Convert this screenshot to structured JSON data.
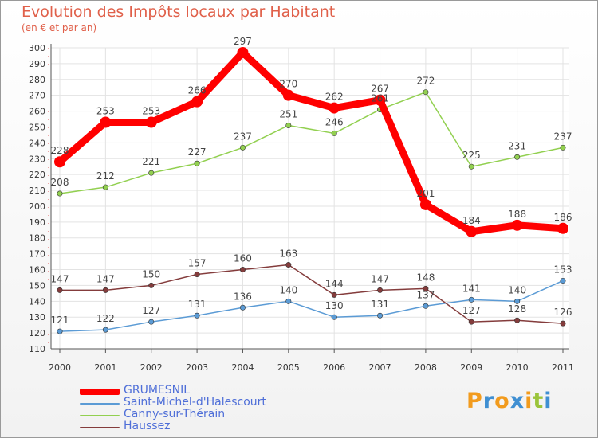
{
  "header": {
    "title": "Evolution des Impôts locaux par Habitant",
    "subtitle": "(en € et par an)"
  },
  "logo": {
    "text": "Proxiti",
    "colors": [
      "#f29b1d",
      "#3f8fd2",
      "#f29b1d",
      "#3f8fd2",
      "#f29b1d",
      "#9bc43b",
      "#3f8fd2"
    ]
  },
  "chart_data": {
    "type": "line",
    "title": "Evolution des Impôts locaux par Habitant",
    "subtitle": "(en € et par an)",
    "x": [
      "2000",
      "2001",
      "2002",
      "2003",
      "2004",
      "2005",
      "2006",
      "2007",
      "2008",
      "2009",
      "2010",
      "2011"
    ],
    "ylim": [
      110,
      300
    ],
    "yticks": [
      110,
      120,
      130,
      140,
      150,
      160,
      170,
      180,
      190,
      200,
      210,
      220,
      230,
      240,
      250,
      260,
      270,
      280,
      290,
      300
    ],
    "grid": true,
    "legend_position": "bottom-left",
    "series": [
      {
        "name": "GRUMESNIL",
        "color": "#ff0000",
        "values": [
          228,
          253,
          253,
          266,
          297,
          270,
          262,
          267,
          201,
          184,
          188,
          186
        ],
        "labels": [
          "228",
          "253",
          "253",
          "266",
          "297",
          "270",
          "262",
          "267",
          "201",
          "184",
          "188",
          "186"
        ]
      },
      {
        "name": "Saint-Michel-d'Halescourt",
        "color": "#5b9bd5",
        "values": [
          121,
          122,
          127,
          131,
          136,
          140,
          130,
          131,
          137,
          141,
          140,
          153
        ],
        "labels": [
          "121",
          "122",
          "127",
          "131",
          "136",
          "140",
          "130",
          "131",
          "137",
          "141",
          "140",
          "153"
        ]
      },
      {
        "name": "Canny-sur-Thérain",
        "color": "#92d050",
        "values": [
          208,
          212,
          221,
          227,
          237,
          251,
          246,
          261,
          272,
          225,
          231,
          237
        ],
        "labels": [
          "208",
          "212",
          "221",
          "227",
          "237",
          "251",
          "246",
          "261",
          "272",
          "225",
          "231",
          "237"
        ]
      },
      {
        "name": "Haussez",
        "color": "#843c3c",
        "values": [
          147,
          147,
          150,
          157,
          160,
          163,
          144,
          147,
          148,
          127,
          128,
          126
        ],
        "labels": [
          "147",
          "147",
          "150",
          "157",
          "160",
          "163",
          "144",
          "147",
          "148",
          "127",
          "128",
          "126"
        ]
      }
    ]
  }
}
